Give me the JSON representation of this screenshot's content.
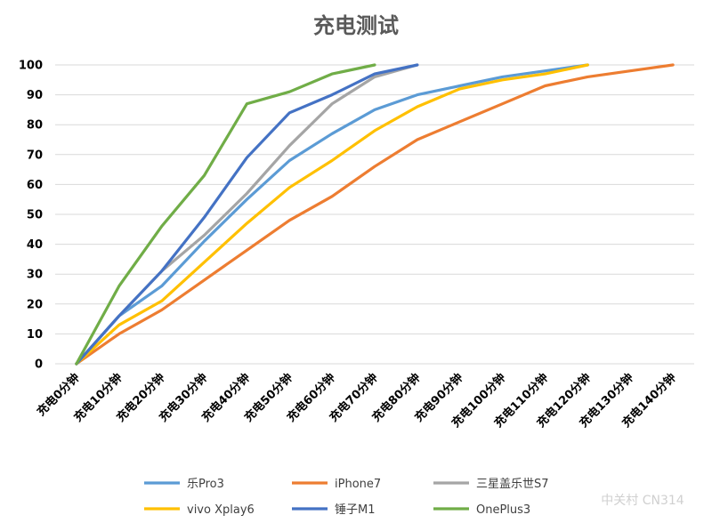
{
  "chart_data": {
    "type": "line",
    "title": "充电测试",
    "xlabel": "",
    "ylabel": "",
    "ylim": [
      0,
      100
    ],
    "yticks": [
      0,
      10,
      20,
      30,
      40,
      50,
      60,
      70,
      80,
      90,
      100
    ],
    "grid": true,
    "legend_position": "bottom",
    "categories": [
      "充电0分钟",
      "充电10分钟",
      "充电20分钟",
      "充电30分钟",
      "充电40分钟",
      "充电50分钟",
      "充电60分钟",
      "充电70分钟",
      "充电80分钟",
      "充电90分钟",
      "充电100分钟",
      "充电110分钟",
      "充电120分钟",
      "充电130分钟",
      "充电140分钟"
    ],
    "series": [
      {
        "name": "乐Pro3",
        "color": "#5b9bd5",
        "values": [
          0,
          16,
          26,
          41,
          55,
          68,
          77,
          85,
          90,
          93,
          96,
          98,
          100,
          null,
          null
        ]
      },
      {
        "name": "iPhone7",
        "color": "#ed7d31",
        "values": [
          0,
          10,
          18,
          28,
          38,
          48,
          56,
          66,
          75,
          81,
          87,
          93,
          96,
          98,
          100
        ]
      },
      {
        "name": "三星盖乐世S7",
        "color": "#a5a5a5",
        "values": [
          0,
          16,
          31,
          43,
          57,
          73,
          87,
          96,
          100,
          null,
          null,
          null,
          null,
          null,
          null
        ]
      },
      {
        "name": "vivo Xplay6",
        "color": "#ffc000",
        "values": [
          0,
          13,
          21,
          34,
          47,
          59,
          68,
          78,
          86,
          92,
          95,
          97,
          100,
          null,
          null
        ]
      },
      {
        "name": "锤子M1",
        "color": "#4472c4",
        "values": [
          0,
          16,
          31,
          49,
          69,
          84,
          90,
          97,
          100,
          null,
          null,
          null,
          null,
          null,
          null
        ]
      },
      {
        "name": "OnePlus3",
        "color": "#70ad47",
        "values": [
          0,
          26,
          46,
          63,
          87,
          91,
          97,
          100,
          null,
          null,
          null,
          null,
          null,
          null,
          null
        ]
      }
    ]
  },
  "watermark": "中关村 CN314"
}
